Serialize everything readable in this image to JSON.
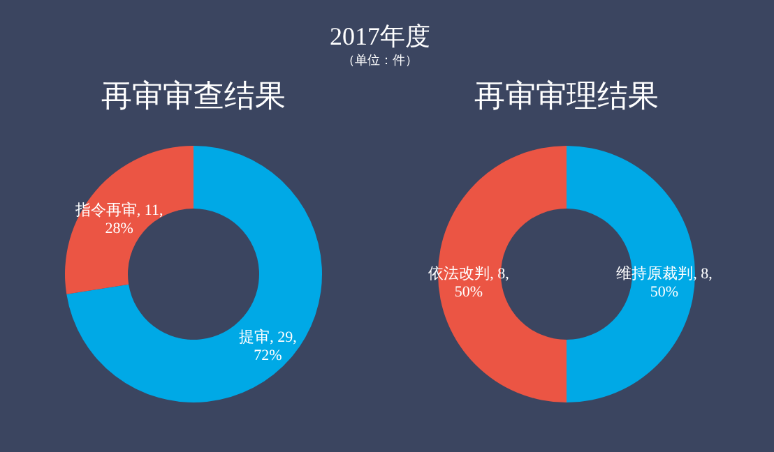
{
  "chart_data": [
    {
      "type": "donut",
      "title": "再审审查结果",
      "annotations": [
        "2017年度",
        "（单位：件）"
      ],
      "categories": [
        "提审",
        "指令再审"
      ],
      "values": [
        29,
        11
      ],
      "colors": [
        "#00a9e6",
        "#eb5544"
      ],
      "value_labels": [
        "29, 72%",
        "11, 28%"
      ]
    },
    {
      "type": "donut",
      "title": "再审审理结果",
      "categories": [
        "维持原裁判",
        "依法改判"
      ],
      "values": [
        8,
        8
      ],
      "colors": [
        "#00a9e6",
        "#eb5544"
      ],
      "value_labels": [
        "8, 50%",
        "8, 50%"
      ]
    }
  ]
}
